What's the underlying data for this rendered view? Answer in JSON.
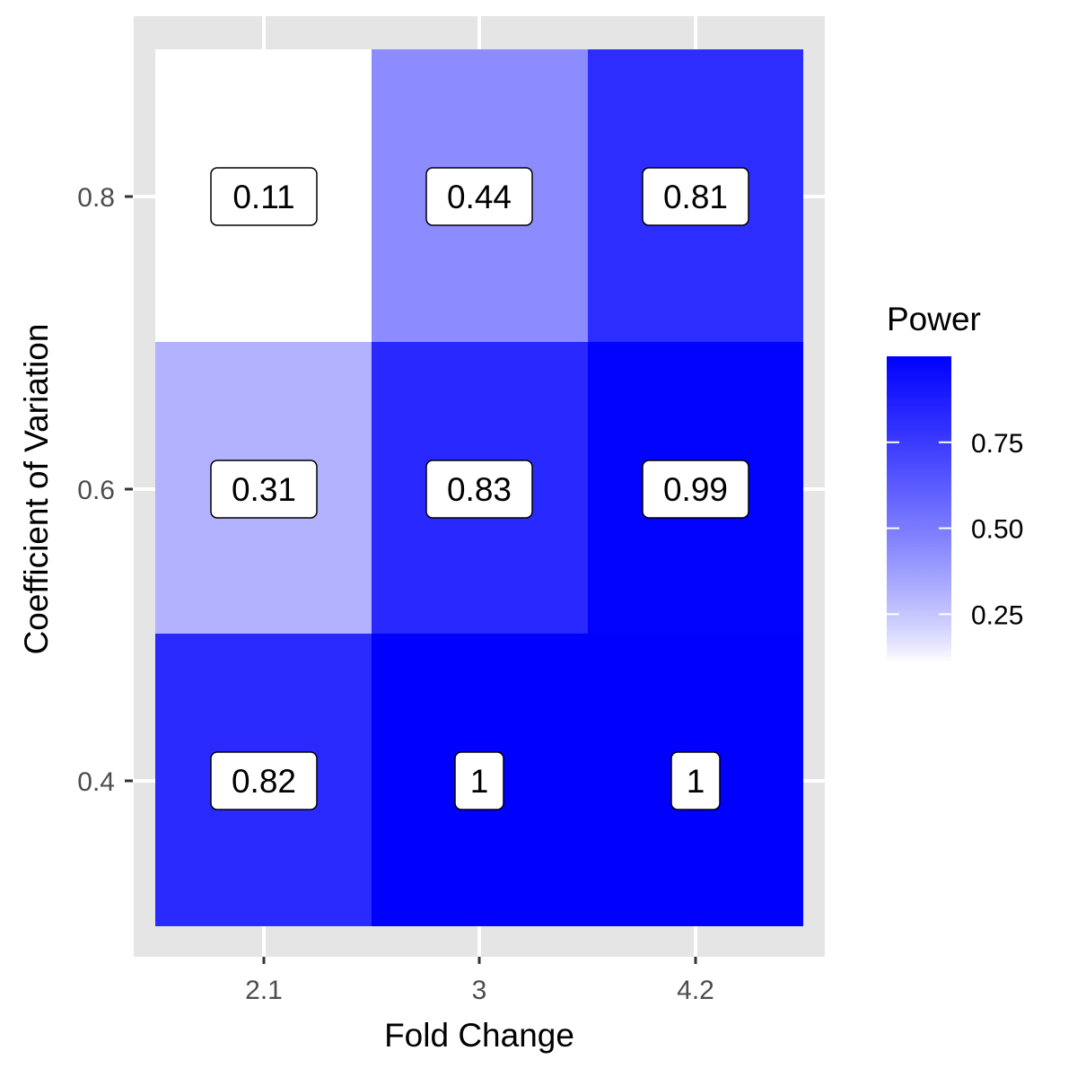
{
  "chart_data": {
    "type": "heatmap",
    "title": "",
    "xlabel": "Fold Change",
    "ylabel": "Coefficient of Variation",
    "x_categories": [
      "2.1",
      "3",
      "4.2"
    ],
    "y_categories": [
      "0.4",
      "0.6",
      "0.8"
    ],
    "cells": [
      {
        "x": "2.1",
        "y": "0.8",
        "value": 0.11,
        "label": "0.11"
      },
      {
        "x": "3",
        "y": "0.8",
        "value": 0.44,
        "label": "0.44"
      },
      {
        "x": "4.2",
        "y": "0.8",
        "value": 0.81,
        "label": "0.81"
      },
      {
        "x": "2.1",
        "y": "0.6",
        "value": 0.31,
        "label": "0.31"
      },
      {
        "x": "3",
        "y": "0.6",
        "value": 0.83,
        "label": "0.83"
      },
      {
        "x": "4.2",
        "y": "0.6",
        "value": 0.99,
        "label": "0.99"
      },
      {
        "x": "2.1",
        "y": "0.4",
        "value": 0.82,
        "label": "0.82"
      },
      {
        "x": "3",
        "y": "0.4",
        "value": 1,
        "label": "1"
      },
      {
        "x": "4.2",
        "y": "0.4",
        "value": 1,
        "label": "1"
      }
    ],
    "legend": {
      "title": "Power",
      "ticks": [
        {
          "value": 0.25,
          "label": "0.25"
        },
        {
          "value": 0.5,
          "label": "0.50"
        },
        {
          "value": 0.75,
          "label": "0.75"
        }
      ],
      "min": 0.11,
      "max": 1,
      "low_color": "#ffffff",
      "high_color": "#0000ff",
      "placement": "right"
    },
    "panel_background": "#e5e5e5",
    "grid": true
  }
}
